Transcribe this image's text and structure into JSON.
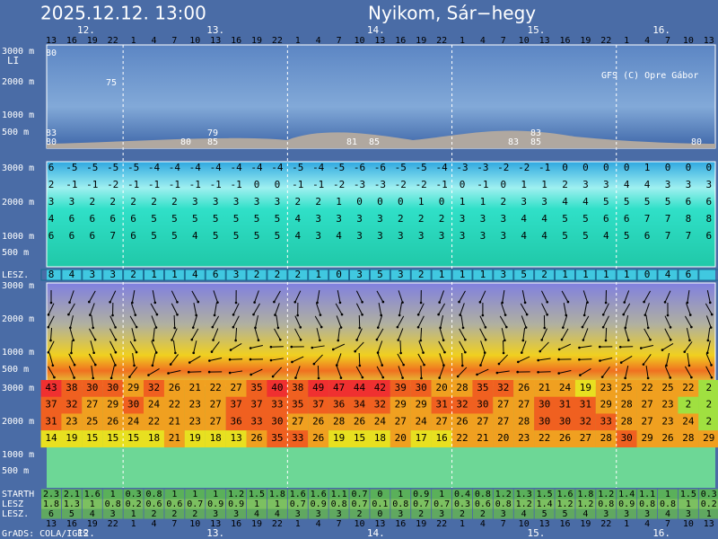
{
  "header": {
    "datetime": "2025.12.12. 13:00",
    "location": "Nyikom, Sár−hegy"
  },
  "days": [
    "12.",
    "13.",
    "14.",
    "15.",
    "16."
  ],
  "hours": [
    13,
    16,
    19,
    22,
    1,
    4,
    7,
    10,
    13,
    16,
    19,
    22,
    1,
    4,
    7,
    10,
    13,
    16,
    19,
    22,
    1,
    4,
    7,
    10,
    13,
    16,
    19,
    22,
    1,
    4,
    7,
    10,
    13
  ],
  "cloud_panel": {
    "y_labels": [
      "3000 m",
      "2000 m",
      "1000 m",
      "500 m"
    ],
    "index_label": "LI",
    "credit": "GFS (C) Opre Gábor",
    "annotations": [
      "80",
      "75",
      "83",
      "80",
      "79",
      "80",
      "85",
      "81",
      "85",
      "83",
      "83",
      "85",
      "80"
    ]
  },
  "temperature_panel": {
    "y_labels": [
      "3000 m",
      "2000 m",
      "1000 m",
      "500 m"
    ],
    "rows": [
      [
        6,
        -5,
        -5,
        -5,
        -5,
        -4,
        -4,
        -4,
        -4,
        -4,
        -4,
        -4,
        -5,
        -4,
        -5,
        -6,
        -6,
        -5,
        -5,
        -4,
        -3,
        -3,
        -2,
        -2,
        -1,
        0,
        0,
        0,
        0,
        1,
        0,
        0,
        0
      ],
      [
        2,
        -1,
        -1,
        -2,
        -1,
        -1,
        -1,
        -1,
        -1,
        -1,
        0,
        0,
        -1,
        -1,
        -2,
        -3,
        -3,
        -2,
        -2,
        -1,
        0,
        -1,
        0,
        1,
        1,
        2,
        3,
        3,
        4,
        4,
        3,
        3,
        3
      ],
      [
        3,
        3,
        2,
        2,
        2,
        2,
        2,
        3,
        3,
        3,
        3,
        3,
        2,
        2,
        1,
        0,
        0,
        0,
        1,
        0,
        1,
        1,
        2,
        3,
        3,
        4,
        4,
        5,
        5,
        5,
        5,
        6,
        6
      ],
      [
        4,
        6,
        6,
        6,
        6,
        5,
        5,
        5,
        5,
        5,
        5,
        5,
        4,
        3,
        3,
        3,
        3,
        2,
        2,
        2,
        3,
        3,
        3,
        4,
        4,
        5,
        5,
        6,
        6,
        7,
        7,
        8,
        8
      ],
      [
        6,
        6,
        6,
        7,
        6,
        5,
        5,
        4,
        5,
        5,
        5,
        5,
        4,
        3,
        4,
        3,
        3,
        3,
        3,
        3,
        3,
        3,
        3,
        4,
        4,
        5,
        5,
        4,
        5,
        6,
        7,
        7,
        6
      ]
    ]
  },
  "lesz_row": {
    "label": "LESZ.",
    "values": [
      8,
      4,
      3,
      3,
      2,
      1,
      1,
      4,
      6,
      3,
      2,
      2,
      2,
      1,
      0,
      3,
      5,
      3,
      2,
      1,
      1,
      1,
      3,
      5,
      2,
      1,
      1,
      1,
      1,
      0,
      4,
      6,
      null
    ]
  },
  "wind_panel": {
    "y_labels": [
      "3000 m",
      "2000 m",
      "1000 m",
      "500 m"
    ]
  },
  "wind_speed_panel": {
    "y_labels": [
      "3000 m",
      "2000 m",
      "1000 m",
      "500 m"
    ],
    "rows": [
      [
        43,
        38,
        30,
        30,
        29,
        32,
        26,
        21,
        22,
        27,
        35,
        40,
        38,
        49,
        47,
        44,
        42,
        39,
        30,
        20,
        28,
        35,
        32,
        26,
        21,
        24,
        19,
        23,
        25,
        22,
        25,
        22,
        2
      ],
      [
        37,
        32,
        27,
        29,
        30,
        24,
        22,
        23,
        27,
        37,
        37,
        33,
        35,
        37,
        36,
        34,
        32,
        29,
        29,
        31,
        32,
        30,
        27,
        27,
        30,
        31,
        31,
        29,
        28,
        27,
        23,
        2,
        2
      ],
      [
        31,
        23,
        25,
        26,
        24,
        22,
        21,
        23,
        27,
        36,
        33,
        30,
        27,
        26,
        28,
        26,
        24,
        27,
        24,
        27,
        26,
        27,
        27,
        28,
        30,
        30,
        32,
        33,
        28,
        27,
        23,
        24,
        2
      ],
      [
        14,
        19,
        15,
        15,
        15,
        18,
        21,
        19,
        18,
        13,
        26,
        35,
        33,
        26,
        19,
        15,
        18,
        20,
        17,
        16,
        22,
        21,
        20,
        23,
        22,
        26,
        27,
        28,
        30,
        29,
        26,
        28,
        29
      ]
    ]
  },
  "bottom_rows": [
    {
      "label": "STARTH",
      "values": [
        2.3,
        2.1,
        1.6,
        1,
        0.3,
        0.8,
        1,
        1,
        1,
        1.2,
        1.5,
        1.8,
        1.6,
        1.6,
        1.1,
        0.7,
        0,
        1,
        0.9,
        1,
        0.4,
        0.8,
        1.2,
        1.3,
        1.5,
        1.6,
        1.8,
        1.2,
        1.4,
        1.1,
        1,
        1.5,
        0.3
      ]
    },
    {
      "label": "LESZ",
      "values": [
        1.8,
        1.3,
        1,
        0.8,
        0.2,
        0.6,
        0.6,
        0.7,
        0.9,
        0.9,
        1,
        1,
        0.7,
        0.9,
        0.8,
        0.7,
        0.1,
        0.8,
        0.7,
        0.7,
        0.3,
        0.6,
        0.8,
        1.2,
        1.4,
        1.2,
        1.2,
        0.8,
        0.9,
        0.8,
        0.8,
        1,
        0.2
      ]
    },
    {
      "label": "LESZ.",
      "values": [
        6,
        5,
        4,
        3,
        1,
        2,
        2,
        2,
        3,
        3,
        4,
        4,
        3,
        3,
        3,
        2,
        0,
        3,
        2,
        3,
        2,
        2,
        3,
        4,
        5,
        5,
        4,
        3,
        3,
        3,
        4,
        3,
        1
      ]
    }
  ],
  "footer": {
    "credit": "GrADS: COLA/IGES"
  }
}
